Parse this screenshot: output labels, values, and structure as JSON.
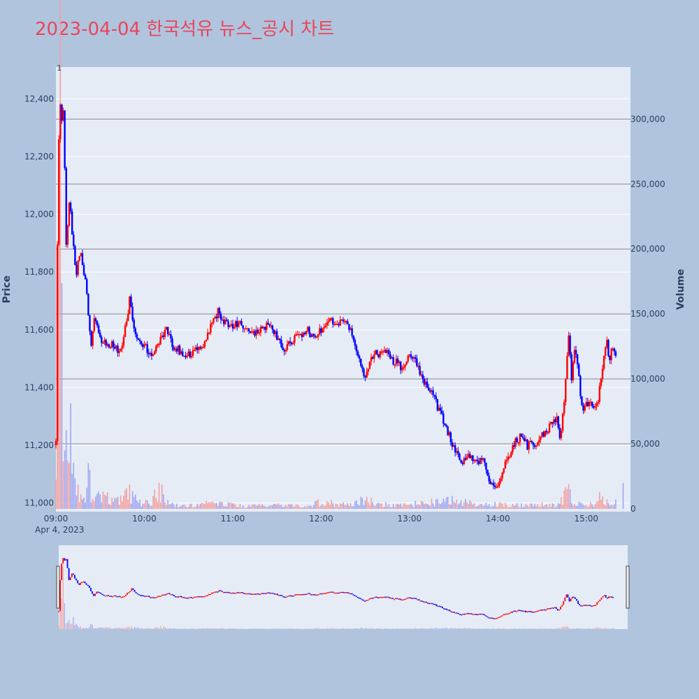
{
  "page": {
    "title": "2023-04-04 한국석유 뉴스_공시 차트",
    "title_color": "#e8465a",
    "background": "#b0c4de",
    "plot_background": "#e5ecf6"
  },
  "chart_data": {
    "type": "candlestick",
    "title": "2023-04-04 한국석유 뉴스_공시 차트",
    "ylabel": "Price",
    "y2label": "Volume",
    "up_color": "#ff0000",
    "down_color": "#0000ff",
    "ylim": [
      10970,
      12510
    ],
    "y_ticks": [
      11000,
      11200,
      11400,
      11600,
      11800,
      12000,
      12200,
      12400
    ],
    "y_tick_labels": [
      "11,000",
      "11,200",
      "11,400",
      "11,600",
      "11,800",
      "12,000",
      "12,200",
      "12,400"
    ],
    "volume_ylim": [
      0,
      340000
    ],
    "volume_ticks": [
      0,
      50000,
      100000,
      150000,
      200000,
      250000,
      300000
    ],
    "volume_tick_labels": [
      "0",
      "50,000",
      "100,000",
      "150,000",
      "200,000",
      "250,000",
      "300,000"
    ],
    "x_range_minutes": [
      540,
      930
    ],
    "x_ticks": [
      540,
      600,
      660,
      720,
      780,
      840,
      900
    ],
    "x_tick_labels": [
      "09:00",
      "10:00",
      "11:00",
      "12:00",
      "13:00",
      "14:00",
      "15:00"
    ],
    "x_date_label": "Apr 4, 2023",
    "marker_label": "1",
    "marker_time": 542,
    "price_path": [
      {
        "t": 540,
        "p": 11200
      },
      {
        "t": 541,
        "p": 11900
      },
      {
        "t": 542,
        "p": 12250
      },
      {
        "t": 543,
        "p": 12370
      },
      {
        "t": 544,
        "p": 12320
      },
      {
        "t": 545,
        "p": 12350
      },
      {
        "t": 546,
        "p": 12150
      },
      {
        "t": 547,
        "p": 11880
      },
      {
        "t": 548,
        "p": 11950
      },
      {
        "t": 549,
        "p": 12030
      },
      {
        "t": 550,
        "p": 12000
      },
      {
        "t": 552,
        "p": 11880
      },
      {
        "t": 554,
        "p": 11800
      },
      {
        "t": 556,
        "p": 11870
      },
      {
        "t": 558,
        "p": 11830
      },
      {
        "t": 560,
        "p": 11780
      },
      {
        "t": 562,
        "p": 11650
      },
      {
        "t": 564,
        "p": 11560
      },
      {
        "t": 566,
        "p": 11640
      },
      {
        "t": 568,
        "p": 11620
      },
      {
        "t": 570,
        "p": 11570
      },
      {
        "t": 575,
        "p": 11550
      },
      {
        "t": 580,
        "p": 11540
      },
      {
        "t": 584,
        "p": 11530
      },
      {
        "t": 587,
        "p": 11600
      },
      {
        "t": 590,
        "p": 11700
      },
      {
        "t": 593,
        "p": 11610
      },
      {
        "t": 596,
        "p": 11560
      },
      {
        "t": 600,
        "p": 11540
      },
      {
        "t": 605,
        "p": 11520
      },
      {
        "t": 610,
        "p": 11560
      },
      {
        "t": 615,
        "p": 11610
      },
      {
        "t": 620,
        "p": 11540
      },
      {
        "t": 625,
        "p": 11530
      },
      {
        "t": 630,
        "p": 11510
      },
      {
        "t": 635,
        "p": 11530
      },
      {
        "t": 640,
        "p": 11550
      },
      {
        "t": 645,
        "p": 11610
      },
      {
        "t": 650,
        "p": 11660
      },
      {
        "t": 655,
        "p": 11620
      },
      {
        "t": 660,
        "p": 11610
      },
      {
        "t": 665,
        "p": 11620
      },
      {
        "t": 670,
        "p": 11600
      },
      {
        "t": 675,
        "p": 11590
      },
      {
        "t": 680,
        "p": 11610
      },
      {
        "t": 685,
        "p": 11620
      },
      {
        "t": 690,
        "p": 11570
      },
      {
        "t": 695,
        "p": 11530
      },
      {
        "t": 700,
        "p": 11560
      },
      {
        "t": 705,
        "p": 11580
      },
      {
        "t": 710,
        "p": 11600
      },
      {
        "t": 715,
        "p": 11580
      },
      {
        "t": 720,
        "p": 11600
      },
      {
        "t": 725,
        "p": 11640
      },
      {
        "t": 730,
        "p": 11620
      },
      {
        "t": 735,
        "p": 11640
      },
      {
        "t": 740,
        "p": 11600
      },
      {
        "t": 745,
        "p": 11520
      },
      {
        "t": 750,
        "p": 11430
      },
      {
        "t": 755,
        "p": 11510
      },
      {
        "t": 760,
        "p": 11520
      },
      {
        "t": 765,
        "p": 11520
      },
      {
        "t": 770,
        "p": 11490
      },
      {
        "t": 775,
        "p": 11470
      },
      {
        "t": 780,
        "p": 11520
      },
      {
        "t": 785,
        "p": 11480
      },
      {
        "t": 790,
        "p": 11420
      },
      {
        "t": 795,
        "p": 11390
      },
      {
        "t": 800,
        "p": 11320
      },
      {
        "t": 805,
        "p": 11260
      },
      {
        "t": 810,
        "p": 11190
      },
      {
        "t": 815,
        "p": 11140
      },
      {
        "t": 820,
        "p": 11160
      },
      {
        "t": 825,
        "p": 11150
      },
      {
        "t": 830,
        "p": 11140
      },
      {
        "t": 835,
        "p": 11070
      },
      {
        "t": 840,
        "p": 11060
      },
      {
        "t": 845,
        "p": 11140
      },
      {
        "t": 850,
        "p": 11200
      },
      {
        "t": 855,
        "p": 11230
      },
      {
        "t": 860,
        "p": 11200
      },
      {
        "t": 865,
        "p": 11210
      },
      {
        "t": 870,
        "p": 11230
      },
      {
        "t": 875,
        "p": 11260
      },
      {
        "t": 880,
        "p": 11300
      },
      {
        "t": 882,
        "p": 11230
      },
      {
        "t": 884,
        "p": 11300
      },
      {
        "t": 886,
        "p": 11420
      },
      {
        "t": 888,
        "p": 11590
      },
      {
        "t": 890,
        "p": 11440
      },
      {
        "t": 892,
        "p": 11540
      },
      {
        "t": 894,
        "p": 11470
      },
      {
        "t": 896,
        "p": 11380
      },
      {
        "t": 898,
        "p": 11320
      },
      {
        "t": 900,
        "p": 11340
      },
      {
        "t": 905,
        "p": 11330
      },
      {
        "t": 908,
        "p": 11350
      },
      {
        "t": 910,
        "p": 11440
      },
      {
        "t": 912,
        "p": 11520
      },
      {
        "t": 914,
        "p": 11550
      },
      {
        "t": 916,
        "p": 11500
      },
      {
        "t": 918,
        "p": 11540
      },
      {
        "t": 920,
        "p": 11510
      }
    ],
    "volume_path": [
      {
        "t": 540,
        "v": 70000
      },
      {
        "t": 541,
        "v": 240000
      },
      {
        "t": 542,
        "v": 320000
      },
      {
        "t": 543,
        "v": 310000
      },
      {
        "t": 544,
        "v": 150000
      },
      {
        "t": 545,
        "v": 80000
      },
      {
        "t": 546,
        "v": 95000
      },
      {
        "t": 547,
        "v": 85000
      },
      {
        "t": 548,
        "v": 60000
      },
      {
        "t": 549,
        "v": 40000
      },
      {
        "t": 550,
        "v": 70000
      },
      {
        "t": 551,
        "v": 30000
      },
      {
        "t": 552,
        "v": 25000
      },
      {
        "t": 554,
        "v": 15000
      },
      {
        "t": 556,
        "v": 12000
      },
      {
        "t": 558,
        "v": 18000
      },
      {
        "t": 560,
        "v": 10000
      },
      {
        "t": 562,
        "v": 28000
      },
      {
        "t": 564,
        "v": 14000
      },
      {
        "t": 566,
        "v": 9000
      },
      {
        "t": 568,
        "v": 8000
      },
      {
        "t": 570,
        "v": 12000
      },
      {
        "t": 575,
        "v": 10000
      },
      {
        "t": 580,
        "v": 8000
      },
      {
        "t": 585,
        "v": 9000
      },
      {
        "t": 590,
        "v": 14000
      },
      {
        "t": 595,
        "v": 6000
      },
      {
        "t": 600,
        "v": 5000
      },
      {
        "t": 605,
        "v": 4000
      },
      {
        "t": 610,
        "v": 19000
      },
      {
        "t": 615,
        "v": 5000
      },
      {
        "t": 620,
        "v": 3000
      },
      {
        "t": 630,
        "v": 3000
      },
      {
        "t": 640,
        "v": 4000
      },
      {
        "t": 650,
        "v": 5000
      },
      {
        "t": 660,
        "v": 3000
      },
      {
        "t": 670,
        "v": 2000
      },
      {
        "t": 680,
        "v": 3000
      },
      {
        "t": 690,
        "v": 3000
      },
      {
        "t": 700,
        "v": 3000
      },
      {
        "t": 710,
        "v": 2000
      },
      {
        "t": 720,
        "v": 6000
      },
      {
        "t": 730,
        "v": 4000
      },
      {
        "t": 740,
        "v": 3000
      },
      {
        "t": 750,
        "v": 8000
      },
      {
        "t": 760,
        "v": 4000
      },
      {
        "t": 770,
        "v": 3000
      },
      {
        "t": 780,
        "v": 3000
      },
      {
        "t": 790,
        "v": 6000
      },
      {
        "t": 800,
        "v": 5000
      },
      {
        "t": 810,
        "v": 7000
      },
      {
        "t": 820,
        "v": 5000
      },
      {
        "t": 830,
        "v": 3000
      },
      {
        "t": 840,
        "v": 4000
      },
      {
        "t": 850,
        "v": 3000
      },
      {
        "t": 860,
        "v": 3000
      },
      {
        "t": 870,
        "v": 4000
      },
      {
        "t": 880,
        "v": 3000
      },
      {
        "t": 885,
        "v": 10000
      },
      {
        "t": 888,
        "v": 15000
      },
      {
        "t": 892,
        "v": 6000
      },
      {
        "t": 896,
        "v": 4000
      },
      {
        "t": 900,
        "v": 3000
      },
      {
        "t": 905,
        "v": 4000
      },
      {
        "t": 910,
        "v": 10000
      },
      {
        "t": 914,
        "v": 6000
      },
      {
        "t": 918,
        "v": 5000
      },
      {
        "t": 925,
        "v": 20000
      }
    ]
  }
}
